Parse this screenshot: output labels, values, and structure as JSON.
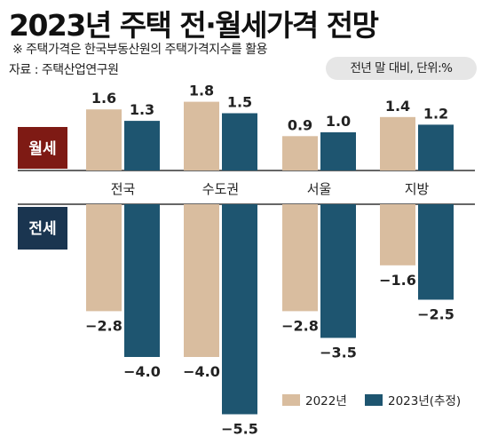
{
  "title": "2023년 주택 전·월세가격 전망",
  "note": "※ 주택가격은 한국부동산원의 주택가격지수를 활용",
  "source": "자료 : 주택산업연구원",
  "unit": "전년 말 대비, 단위:%",
  "legend": [
    "2022년",
    "2023년(추정)"
  ],
  "colors": {
    "y2022": "#d9bd9f",
    "y2023": "#1e5570",
    "rent_label_bg": "#7e1a14",
    "jeonse_label_bg": "#1a3550"
  },
  "chart_data": {
    "type": "bar",
    "categories": [
      "전국",
      "수도권",
      "서울",
      "지방"
    ],
    "panels": [
      {
        "name": "월세",
        "series": [
          {
            "name": "2022년",
            "values": [
              1.6,
              1.8,
              0.9,
              1.4
            ],
            "labels": [
              "1.6",
              "1.8",
              "0.9",
              "1.4"
            ]
          },
          {
            "name": "2023년(추정)",
            "values": [
              1.3,
              1.5,
              1.0,
              1.2
            ],
            "labels": [
              "1.3",
              "1.5",
              "1.0",
              "1.2"
            ]
          }
        ]
      },
      {
        "name": "전세",
        "series": [
          {
            "name": "2022년",
            "values": [
              -2.8,
              -4.0,
              -2.8,
              -1.6
            ],
            "labels": [
              "−2.8",
              "−4.0",
              "−2.8",
              "−1.6"
            ]
          },
          {
            "name": "2023년(추정)",
            "values": [
              -4.0,
              -5.5,
              -3.5,
              -2.5
            ],
            "labels": [
              "−4.0",
              "−5.5",
              "−3.5",
              "−2.5"
            ]
          }
        ]
      }
    ]
  }
}
